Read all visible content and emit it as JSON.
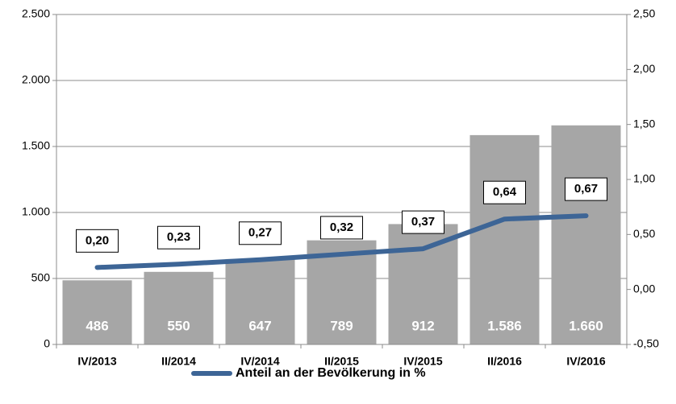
{
  "chart_data": {
    "type": "bar",
    "categories": [
      "IV/2013",
      "II/2014",
      "IV/2014",
      "II/2015",
      "IV/2015",
      "II/2016",
      "IV/2016"
    ],
    "series": [
      {
        "type": "bar",
        "color": "#a6a6a6",
        "values": [
          486,
          550,
          647,
          789,
          912,
          1586,
          1660
        ],
        "value_labels": [
          "486",
          "550",
          "647",
          "789",
          "912",
          "1.586",
          "1.660"
        ]
      },
      {
        "type": "line",
        "axis": "y2",
        "name": "Anteil an der Bevölkerung in %",
        "color": "#3d6596",
        "values": [
          0.2,
          0.23,
          0.27,
          0.32,
          0.37,
          0.64,
          0.67
        ],
        "value_labels": [
          "0,20",
          "0,23",
          "0,27",
          "0,32",
          "0,37",
          "0,64",
          "0,67"
        ]
      }
    ],
    "ylim": [
      0,
      2500
    ],
    "yticks": [
      0,
      500,
      {
        "value": 1000,
        "label": "1.000"
      },
      {
        "value": 1500,
        "label": "1.500"
      },
      {
        "value": 2000,
        "label": "2.000"
      },
      {
        "value": 2500,
        "label": "2.500"
      }
    ],
    "y2lim": [
      -0.5,
      2.5
    ],
    "y2ticks": [
      {
        "value": -0.5,
        "label": "-0,50"
      },
      {
        "value": 0,
        "label": "0,00"
      },
      {
        "value": 0.5,
        "label": "0,50"
      },
      {
        "value": 1,
        "label": "1,00"
      },
      {
        "value": 1.5,
        "label": "1,50"
      },
      {
        "value": 2,
        "label": "2,00"
      },
      {
        "value": 2.5,
        "label": "2,50"
      }
    ],
    "grid": true,
    "legend": "bottom"
  }
}
